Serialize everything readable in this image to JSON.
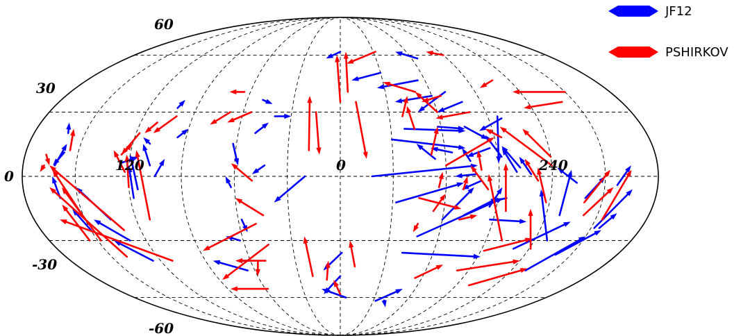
{
  "chart_data": {
    "type": "scatter",
    "projection": "mollweide",
    "xlabel": "",
    "ylabel": "",
    "xlim": [
      -180,
      180
    ],
    "ylim": [
      -90,
      90
    ],
    "grid": true,
    "legend_position": "top-right",
    "longitude_ticks": [
      "120",
      "0",
      "240"
    ],
    "latitude_ticks": [
      "60",
      "30",
      "0",
      "-30",
      "-60"
    ],
    "series": [
      {
        "name": "JF12",
        "color": "#0000ff",
        "arrows": [
          [
            65,
            58,
            50,
            62
          ],
          [
            0,
            62,
            -12,
            58
          ],
          [
            30,
            50,
            8,
            46
          ],
          [
            55,
            46,
            25,
            42
          ],
          [
            60,
            38,
            35,
            35
          ],
          [
            70,
            40,
            48,
            30
          ],
          [
            78,
            35,
            60,
            30
          ],
          [
            96,
            28,
            90,
            6
          ],
          [
            98,
            27,
            82,
            21
          ],
          [
            100,
            2,
            93,
            13
          ],
          [
            102,
            4,
            93,
            14
          ],
          [
            128,
            -18,
            131,
            3
          ],
          [
            128,
            -30,
            114,
            -6
          ],
          [
            134,
            -3,
            123,
            4
          ],
          [
            108,
            1,
            102,
            9
          ],
          [
            95,
            -10,
            85,
            -12
          ],
          [
            92,
            9,
            85,
            19
          ],
          [
            86,
            13,
            72,
            9
          ],
          [
            74,
            7,
            70,
            13
          ],
          [
            64,
            11,
            52,
            13
          ],
          [
            54,
            8,
            44,
            15
          ],
          [
            80,
            -2,
            69,
            -6
          ],
          [
            77,
            1,
            65,
            0
          ],
          [
            18,
            0,
            78,
            5
          ],
          [
            30,
            17,
            72,
            13
          ],
          [
            38,
            22,
            74,
            21
          ],
          [
            58,
            23,
            74,
            22
          ],
          [
            74,
            23,
            86,
            17
          ],
          [
            32,
            -12,
            70,
            -3
          ],
          [
            60,
            -20,
            76,
            -5
          ],
          [
            47,
            -28,
            93,
            -10
          ],
          [
            86,
            -14,
            92,
            -5
          ],
          [
            72,
            -18,
            90,
            -10
          ],
          [
            140,
            -10,
            150,
            0
          ],
          [
            152,
            -24,
            166,
            -6
          ],
          [
            157,
            -4,
            165,
            5
          ],
          [
            155,
            -24,
            161,
            -17
          ],
          [
            130,
            -45,
            150,
            -28
          ],
          [
            140,
            -37,
            157,
            -25
          ],
          [
            110,
            -34,
            136,
            -21
          ],
          [
            88,
            -20,
            110,
            -21
          ],
          [
            40,
            -36,
            92,
            -38
          ],
          [
            32,
            -62,
            50,
            -55
          ],
          [
            0,
            -48,
            -14,
            -58
          ],
          [
            5,
            -60,
            -15,
            -55
          ],
          [
            1,
            -36,
            -12,
            -45
          ],
          [
            40,
            -62,
            45,
            -66
          ],
          [
            -20,
            0,
            -38,
            -12
          ],
          [
            -50,
            20,
            -43,
            25
          ],
          [
            -40,
            28,
            -30,
            28
          ],
          [
            -50,
            36,
            -43,
            34
          ],
          [
            -43,
            5,
            -50,
            1
          ],
          [
            -62,
            15,
            -58,
            5
          ],
          [
            -62,
            -5,
            -65,
            0
          ],
          [
            -58,
            -20,
            -56,
            -26
          ],
          [
            -62,
            -30,
            -70,
            -28
          ],
          [
            -65,
            -45,
            -85,
            -40
          ],
          [
            -60,
            -40,
            -70,
            -40
          ],
          [
            -118,
            -10,
            -120,
            5
          ],
          [
            -115,
            -6,
            -120,
            10
          ],
          [
            -125,
            6,
            -115,
            9
          ],
          [
            -105,
            0,
            -100,
            8
          ],
          [
            -108,
            5,
            -114,
            15
          ],
          [
            -110,
            15,
            -115,
            18
          ],
          [
            -95,
            18,
            -90,
            22
          ],
          [
            -102,
            32,
            -100,
            36
          ],
          [
            -158,
            11,
            -163,
            5
          ],
          [
            -162,
            5,
            -158,
            15
          ],
          [
            -160,
            20,
            -163,
            25
          ],
          [
            -135,
            -20,
            -150,
            -5
          ],
          [
            -130,
            -30,
            -145,
            -20
          ],
          [
            -125,
            -40,
            -140,
            -30
          ],
          [
            -150,
            -25,
            -155,
            -15
          ],
          [
            -160,
            -10,
            -163,
            0
          ]
        ]
      },
      {
        "name": "PSHIRKOV",
        "color": "#ff0000",
        "arrows": [
          [
            108,
            46,
            95,
            42
          ],
          [
            90,
            60,
            78,
            62
          ],
          [
            32,
            62,
            5,
            55
          ],
          [
            50,
            40,
            30,
            45
          ],
          [
            60,
            30,
            50,
            40
          ],
          [
            66,
            38,
            52,
            35
          ],
          [
            80,
            30,
            58,
            27
          ],
          [
            142,
            35,
            115,
            32
          ],
          [
            150,
            40,
            115,
            40
          ],
          [
            120,
            5,
            95,
            23
          ],
          [
            140,
            -12,
            153,
            3
          ],
          [
            142,
            -18,
            155,
            -5
          ],
          [
            154,
            -20,
            165,
            3
          ],
          [
            94,
            18,
            86,
            22
          ],
          [
            96,
            -16,
            94,
            6
          ],
          [
            100,
            -30,
            84,
            1
          ],
          [
            118,
            -12,
            112,
            4
          ],
          [
            121,
            -34,
            110,
            -15
          ],
          [
            120,
            9,
            108,
            22
          ],
          [
            112,
            -2,
            105,
            8
          ],
          [
            84,
            -6,
            74,
            5
          ],
          [
            80,
            3,
            79,
            12
          ],
          [
            70,
            -6,
            72,
            0
          ],
          [
            56,
            -5,
            58,
            2
          ],
          [
            52,
            10,
            58,
            23
          ],
          [
            44,
            22,
            42,
            33
          ],
          [
            38,
            28,
            44,
            38
          ],
          [
            60,
            5,
            90,
            18
          ],
          [
            45,
            -10,
            70,
            -15
          ],
          [
            54,
            -16,
            60,
            -8
          ],
          [
            46,
            -22,
            44,
            -26
          ],
          [
            70,
            -20,
            80,
            -18
          ],
          [
            92,
            -35,
            118,
            -29
          ],
          [
            82,
            -45,
            120,
            -40
          ],
          [
            100,
            -53,
            130,
            -44
          ],
          [
            55,
            -49,
            70,
            -42
          ],
          [
            10,
            -43,
            6,
            -30
          ],
          [
            -20,
            -48,
            -22,
            -28
          ],
          [
            0,
            -58,
            -5,
            -50
          ],
          [
            -10,
            -50,
            -8,
            -40
          ],
          [
            10,
            35,
            15,
            8
          ],
          [
            -15,
            30,
            -12,
            10
          ],
          [
            0,
            35,
            -3,
            60
          ],
          [
            5,
            40,
            5,
            62
          ],
          [
            -18,
            12,
            -20,
            38
          ],
          [
            -45,
            -18,
            -60,
            -10
          ],
          [
            -50,
            -2,
            -62,
            6
          ],
          [
            -50,
            -40,
            -70,
            -40
          ],
          [
            -55,
            -40,
            -60,
            -48
          ],
          [
            -58,
            -55,
            -88,
            -55
          ],
          [
            -45,
            -32,
            -88,
            -50
          ],
          [
            -50,
            -22,
            -88,
            -35
          ],
          [
            -55,
            30,
            -68,
            25
          ],
          [
            -64,
            40,
            -74,
            40
          ],
          [
            -68,
            30,
            -78,
            24
          ],
          [
            -110,
            25,
            -115,
            20
          ],
          [
            -100,
            28,
            -110,
            20
          ],
          [
            -112,
            -20,
            -117,
            12
          ],
          [
            -120,
            -5,
            -122,
            10
          ],
          [
            -125,
            10,
            -120,
            15
          ],
          [
            -118,
            20,
            -125,
            10
          ],
          [
            -122,
            2,
            -130,
            12
          ],
          [
            -140,
            -38,
            -165,
            -5
          ],
          [
            -148,
            -30,
            -158,
            -5
          ],
          [
            -150,
            -20,
            -163,
            3
          ],
          [
            -155,
            -30,
            -160,
            -13
          ],
          [
            -155,
            12,
            -158,
            22
          ],
          [
            -168,
            10,
            -165,
            5
          ],
          [
            -168,
            5,
            -170,
            2
          ],
          [
            -112,
            -40,
            -165,
            -20
          ],
          [
            -130,
            -25,
            -165,
            5
          ]
        ]
      }
    ]
  }
}
